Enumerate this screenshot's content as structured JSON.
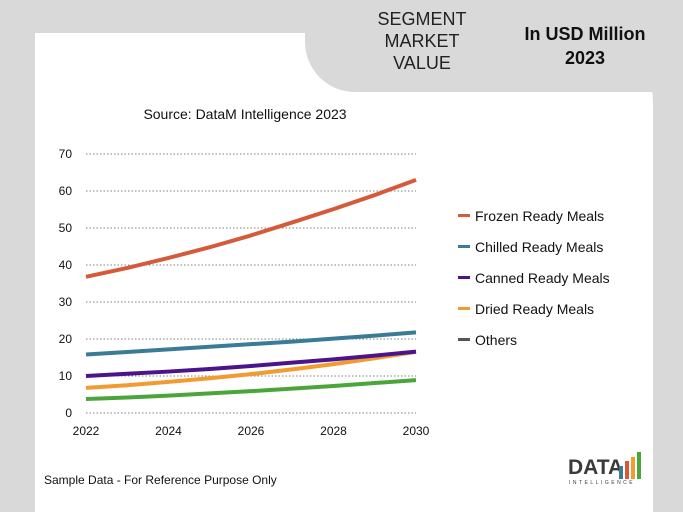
{
  "header": {
    "segment_title_lines": [
      "SEGMENT",
      "MARKET",
      "VALUE"
    ],
    "unit_lines": [
      "In USD Million",
      "2023"
    ]
  },
  "source": "Source: DataM Intelligence  2023",
  "footer": {
    "note": "Sample Data - For Reference Purpose Only",
    "logo_text": "DATA",
    "logo_sub": "INTELLIGENCE"
  },
  "chart_data": {
    "type": "line",
    "title": "",
    "xlabel": "",
    "ylabel": "",
    "x": [
      2022,
      2023,
      2024,
      2025,
      2026,
      2027,
      2028,
      2029,
      2030
    ],
    "x_ticks": [
      "2022",
      "2024",
      "2026",
      "2028",
      "2030"
    ],
    "y_ticks": [
      "0",
      "10",
      "20",
      "30",
      "40",
      "50",
      "60",
      "70"
    ],
    "ylim": [
      0,
      70
    ],
    "grid": true,
    "legend_position": "right",
    "series": [
      {
        "name": "Frozen Ready Meals",
        "color": "#d55a3a",
        "values": [
          36.8,
          39.2,
          41.9,
          44.8,
          48.0,
          51.5,
          55.1,
          58.9,
          63.0
        ]
      },
      {
        "name": "Chilled Ready Meals",
        "color": "#3a7b98",
        "values": [
          15.8,
          16.5,
          17.2,
          17.9,
          18.6,
          19.3,
          20.1,
          20.9,
          21.8
        ]
      },
      {
        "name": "Canned Ready Meals",
        "color": "#4b148a",
        "values": [
          10.0,
          10.6,
          11.2,
          11.9,
          12.7,
          13.6,
          14.5,
          15.5,
          16.6
        ]
      },
      {
        "name": "Dried Ready Meals",
        "color": "#f29b30",
        "values": [
          6.8,
          7.5,
          8.4,
          9.4,
          10.5,
          11.8,
          13.2,
          14.8,
          16.5
        ]
      },
      {
        "name": "Others",
        "color": "#4aa63a",
        "legend_color": "#555555",
        "values": [
          3.8,
          4.2,
          4.7,
          5.3,
          5.9,
          6.6,
          7.3,
          8.1,
          8.9
        ]
      }
    ]
  }
}
